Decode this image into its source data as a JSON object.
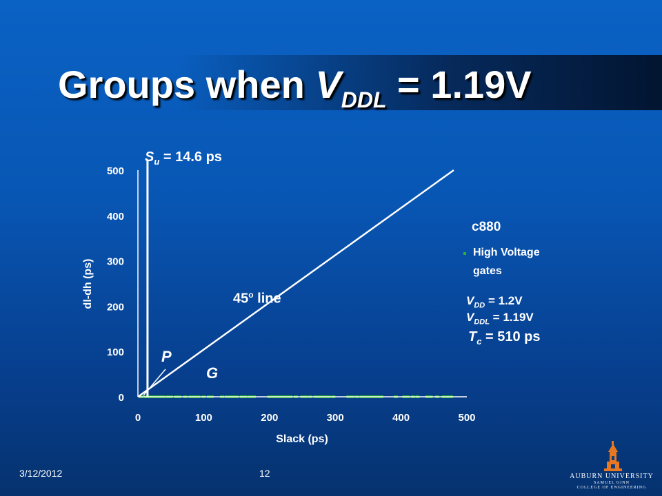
{
  "slide": {
    "title_main": "Groups when ",
    "title_var": "V",
    "title_sub": "DDL",
    "title_tail": " = 1.19V",
    "date": "3/12/2012",
    "page_number": "12"
  },
  "annotations": {
    "su_var": "S",
    "su_sub": "u",
    "su_text": " = 14.6 ps",
    "line45_text": "45",
    "line45_sup": "o",
    "line45_tail": " line",
    "point_p": "P",
    "point_g": "G",
    "circuit": "c880",
    "vdd_var": "V",
    "vdd_sub": "DD",
    "vdd_text": " = 1.2V",
    "vddl_var": "V",
    "vddl_sub": "DDL",
    "vddl_text": " = 1.19V",
    "tc_var": "T",
    "tc_sub": "c",
    "tc_text": " = 510 ps"
  },
  "logo": {
    "line1": "AUBURN UNIVERSITY",
    "line2": "SAMUEL GINN",
    "line3": "COLLEGE OF ENGINEERING"
  },
  "colors": {
    "series": "#2bb52b",
    "axis": "#ffffff",
    "logo_orange": "#e87722"
  },
  "chart_data": {
    "type": "scatter",
    "xlabel": "Slack (ps)",
    "ylabel": "dl-dh (ps)",
    "xlim": [
      0,
      500
    ],
    "ylim": [
      0,
      500
    ],
    "x_ticks": [
      "0",
      "100",
      "200",
      "300",
      "400",
      "500"
    ],
    "y_ticks": [
      "0",
      "100",
      "200",
      "300",
      "400",
      "500"
    ],
    "legend": {
      "position": "right",
      "entries": [
        "High Voltage",
        "gates"
      ]
    },
    "series": [
      {
        "name": "High Voltage gates",
        "points": [
          [
            5,
            0
          ],
          [
            12,
            0
          ],
          [
            18,
            0
          ],
          [
            22,
            0
          ],
          [
            27,
            0
          ],
          [
            33,
            0
          ],
          [
            38,
            0
          ],
          [
            45,
            0
          ],
          [
            50,
            0
          ],
          [
            58,
            0
          ],
          [
            63,
            0
          ],
          [
            72,
            0
          ],
          [
            80,
            0
          ],
          [
            86,
            0
          ],
          [
            92,
            0
          ],
          [
            100,
            0
          ],
          [
            108,
            0
          ],
          [
            112,
            0
          ],
          [
            128,
            0
          ],
          [
            135,
            0
          ],
          [
            140,
            0
          ],
          [
            145,
            0
          ],
          [
            150,
            0
          ],
          [
            158,
            0
          ],
          [
            163,
            0
          ],
          [
            170,
            0
          ],
          [
            176,
            0
          ],
          [
            200,
            0
          ],
          [
            205,
            0
          ],
          [
            210,
            0
          ],
          [
            215,
            0
          ],
          [
            220,
            0
          ],
          [
            226,
            0
          ],
          [
            232,
            0
          ],
          [
            240,
            0
          ],
          [
            250,
            0
          ],
          [
            255,
            0
          ],
          [
            262,
            0
          ],
          [
            270,
            0
          ],
          [
            275,
            0
          ],
          [
            280,
            0
          ],
          [
            285,
            0
          ],
          [
            290,
            0
          ],
          [
            297,
            0
          ],
          [
            320,
            0
          ],
          [
            326,
            0
          ],
          [
            333,
            0
          ],
          [
            340,
            0
          ],
          [
            346,
            0
          ],
          [
            352,
            0
          ],
          [
            358,
            0
          ],
          [
            364,
            0
          ],
          [
            370,
            0
          ],
          [
            392,
            0
          ],
          [
            405,
            0
          ],
          [
            410,
            0
          ],
          [
            418,
            0
          ],
          [
            425,
            0
          ],
          [
            440,
            0
          ],
          [
            445,
            0
          ],
          [
            455,
            0
          ],
          [
            465,
            0
          ],
          [
            470,
            0
          ],
          [
            476,
            0
          ]
        ]
      }
    ],
    "reference_lines": [
      {
        "label": "45o line",
        "from": [
          0,
          0
        ],
        "to": [
          480,
          500
        ]
      },
      {
        "label": "Su = 14.6 ps",
        "x": 14.6
      }
    ]
  }
}
